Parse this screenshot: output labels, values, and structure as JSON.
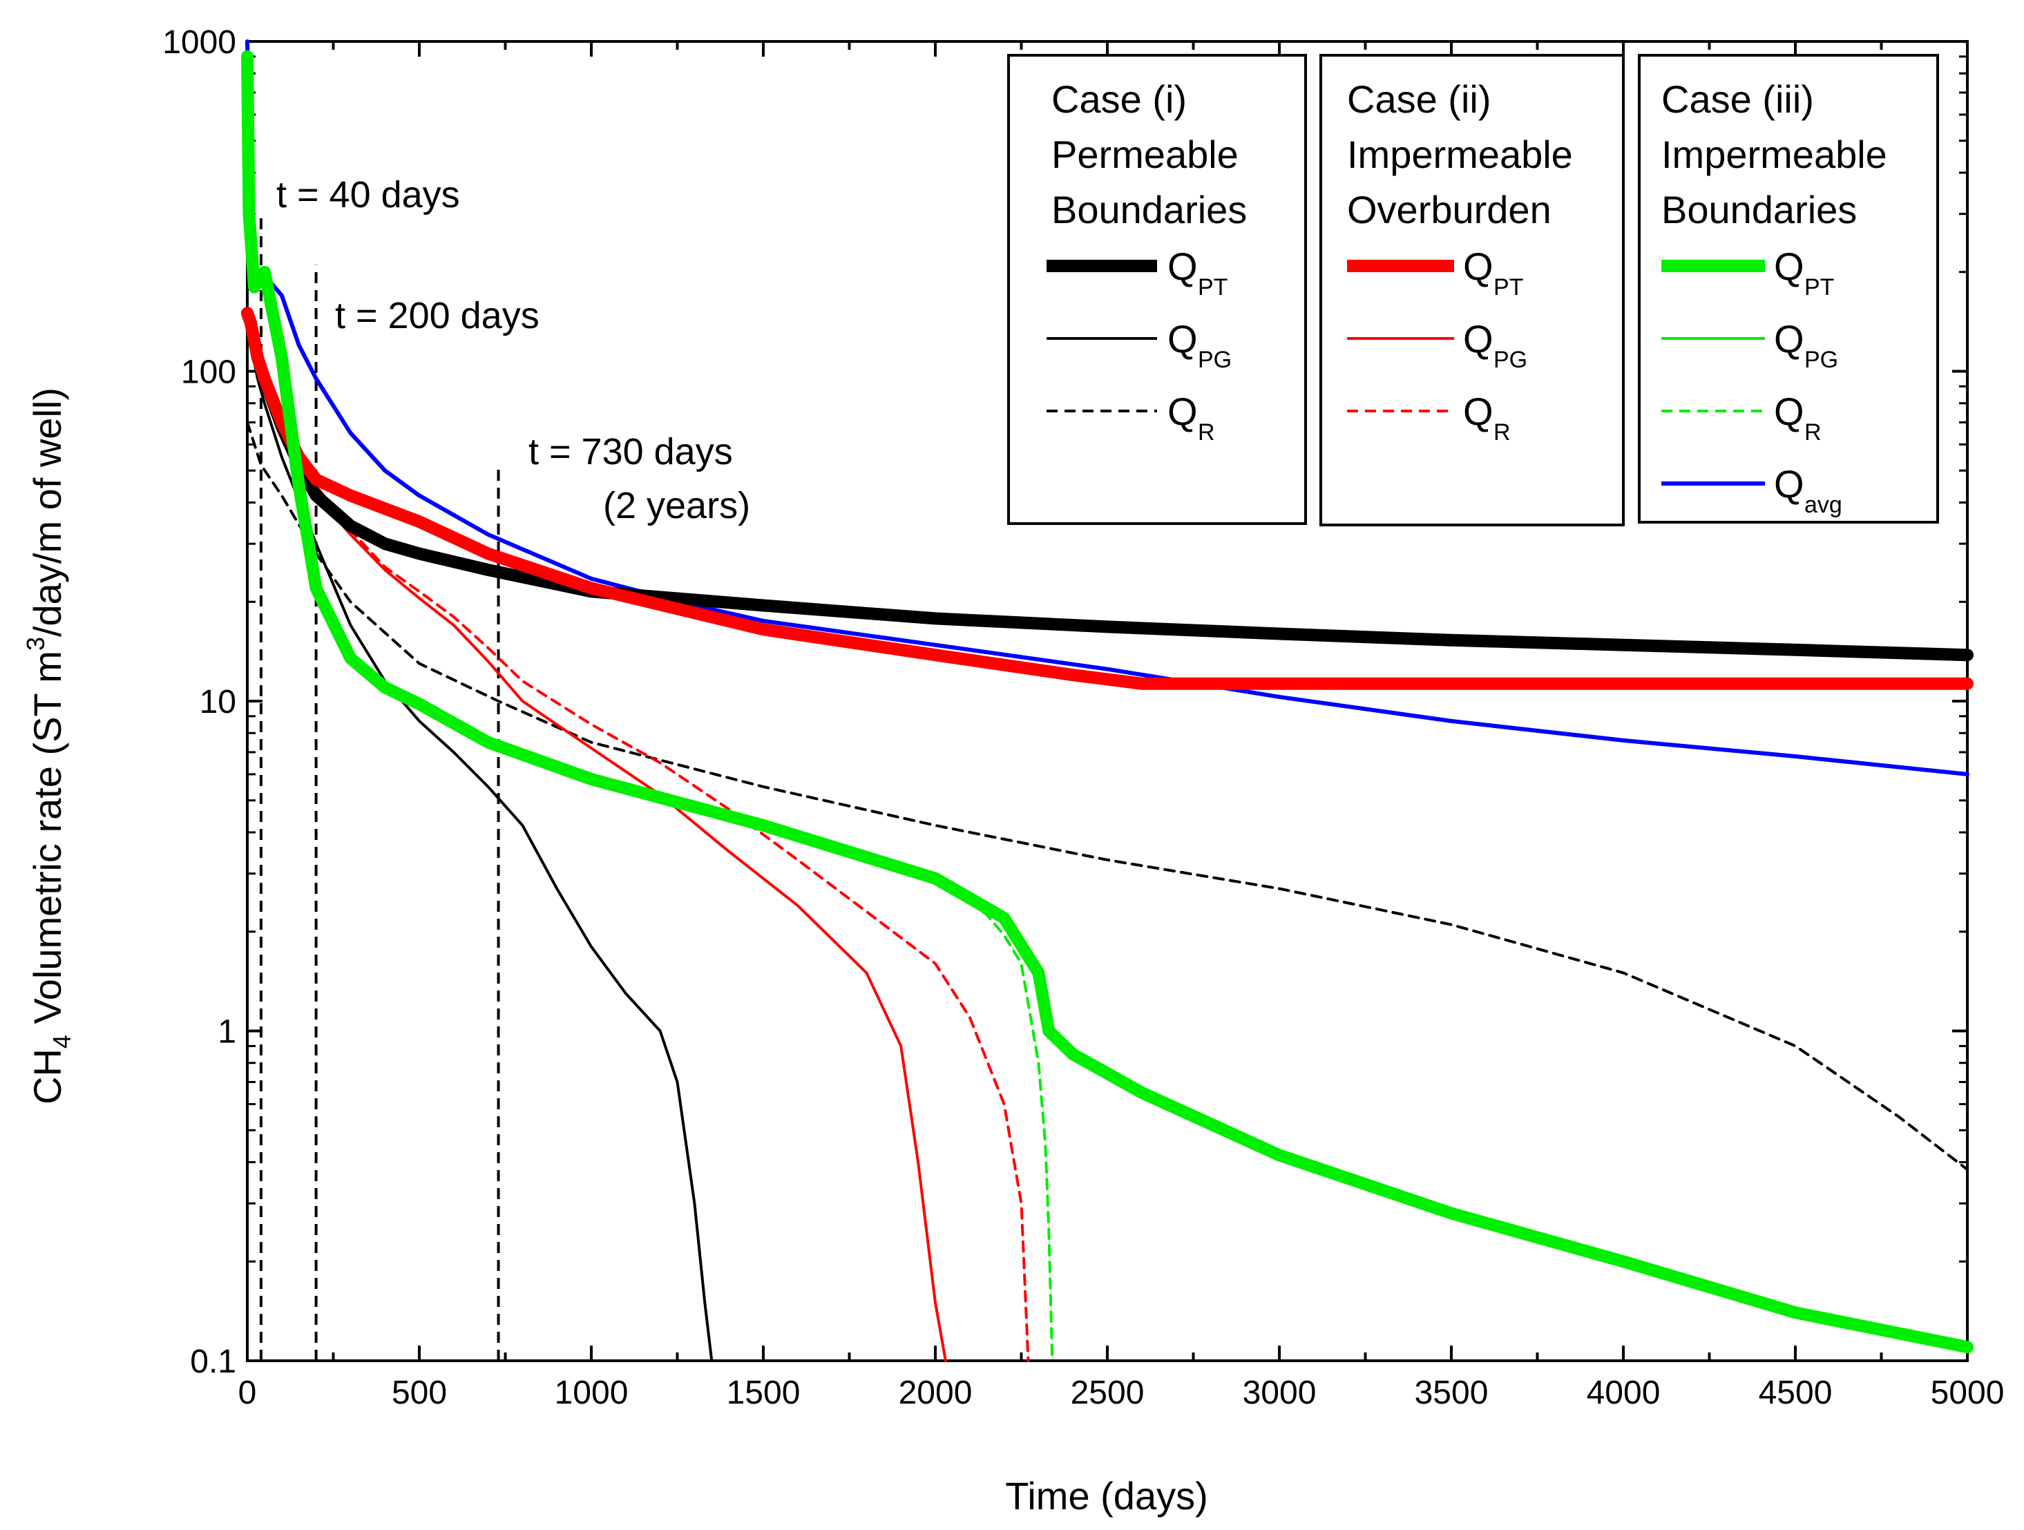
{
  "chart_data": {
    "type": "line",
    "xlabel": "Time (days)",
    "ylabel": {
      "pre": "CH",
      "sub": "4",
      "mid": " Volumetric rate (ST m",
      "sup": "3",
      "post": "/day/m of well)"
    },
    "xlim": [
      0,
      5000
    ],
    "ylim": [
      0.1,
      1000
    ],
    "yscale": "log",
    "x_ticks": [
      0,
      500,
      1000,
      1500,
      2000,
      2500,
      3000,
      3500,
      4000,
      4500,
      5000
    ],
    "x_tick_labels": [
      "0",
      "500",
      "1000",
      "1500",
      "2000",
      "2500",
      "3000",
      "3500",
      "4000",
      "4500",
      "5000"
    ],
    "y_ticks": [
      0.1,
      1,
      10,
      100,
      1000
    ],
    "y_tick_labels": [
      "0.1",
      "1",
      "10",
      "100",
      "1000"
    ],
    "annotations": [
      {
        "id": "t40",
        "x": 40,
        "y_top": 300,
        "text": "t = 40 days"
      },
      {
        "id": "t200",
        "x": 200,
        "y_top": 210,
        "text": "t = 200 days"
      },
      {
        "id": "t730",
        "x": 730,
        "y_top": 52,
        "text_lines": [
          "t = 730 days",
          "(2 years)"
        ]
      }
    ],
    "legend_groups": [
      {
        "title": [
          "Case (i)",
          "Permeable",
          "Boundaries"
        ],
        "entries": [
          {
            "symbol": "Q",
            "sub": "PT",
            "color": "#000000",
            "style": "thick"
          },
          {
            "symbol": "Q",
            "sub": "PG",
            "color": "#000000",
            "style": "thin"
          },
          {
            "symbol": "Q",
            "sub": "R",
            "color": "#000000",
            "style": "dashed"
          }
        ]
      },
      {
        "title": [
          "Case (ii)",
          "Impermeable",
          "Overburden"
        ],
        "entries": [
          {
            "symbol": "Q",
            "sub": "PT",
            "color": "#ff0000",
            "style": "thick"
          },
          {
            "symbol": "Q",
            "sub": "PG",
            "color": "#ff0000",
            "style": "thin"
          },
          {
            "symbol": "Q",
            "sub": "R",
            "color": "#ff0000",
            "style": "dashed"
          }
        ]
      },
      {
        "title": [
          "Case (iii)",
          "Impermeable",
          "Boundaries"
        ],
        "entries": [
          {
            "symbol": "Q",
            "sub": "PT",
            "color": "#00ee00",
            "style": "thick"
          },
          {
            "symbol": "Q",
            "sub": "PG",
            "color": "#00ee00",
            "style": "thin"
          },
          {
            "symbol": "Q",
            "sub": "R",
            "color": "#00ee00",
            "style": "dashed"
          },
          {
            "symbol": "Q",
            "sub": "avg",
            "color": "#0000ff",
            "style": "medium"
          }
        ]
      }
    ],
    "series": [
      {
        "name": "Case (i) Q_PT",
        "color": "#000000",
        "style": "thick",
        "x": [
          0,
          10,
          30,
          50,
          100,
          150,
          200,
          300,
          400,
          500,
          700,
          1000,
          1500,
          2000,
          2500,
          3000,
          3500,
          4000,
          4500,
          5000
        ],
        "y": [
          150,
          140,
          110,
          95,
          68,
          52,
          42,
          34,
          30,
          28,
          25,
          21.5,
          19.5,
          17.8,
          16.8,
          16,
          15.3,
          14.8,
          14.3,
          13.8
        ]
      },
      {
        "name": "Case (i) Q_PG",
        "color": "#000000",
        "style": "thin",
        "x": [
          0,
          10,
          30,
          50,
          100,
          200,
          300,
          400,
          500,
          600,
          700,
          800,
          900,
          1000,
          1100,
          1200,
          1250,
          1300,
          1330,
          1350
        ],
        "y": [
          130,
          120,
          95,
          80,
          55,
          30,
          17,
          11.5,
          8.7,
          7,
          5.5,
          4.2,
          2.7,
          1.8,
          1.3,
          1.0,
          0.7,
          0.3,
          0.15,
          0.1
        ]
      },
      {
        "name": "Case (i) Q_R",
        "color": "#000000",
        "style": "dashed",
        "x": [
          0,
          10,
          40,
          100,
          200,
          300,
          500,
          730,
          1000,
          1500,
          2000,
          2500,
          3000,
          3500,
          4000,
          4500,
          4800,
          5000
        ],
        "y": [
          70,
          65,
          52,
          42,
          28,
          20,
          13,
          10,
          7.5,
          5.5,
          4.2,
          3.3,
          2.7,
          2.1,
          1.5,
          0.9,
          0.55,
          0.38
        ]
      },
      {
        "name": "Case (ii) Q_PT",
        "color": "#ff0000",
        "style": "thick",
        "x": [
          0,
          10,
          30,
          50,
          100,
          150,
          200,
          300,
          500,
          700,
          1000,
          1500,
          2000,
          2400,
          2600,
          3000,
          4000,
          5000
        ],
        "y": [
          150,
          140,
          110,
          95,
          70,
          55,
          47,
          42,
          35,
          28,
          22,
          16.5,
          13.8,
          12,
          11.3,
          11.3,
          11.3,
          11.3
        ]
      },
      {
        "name": "Case (ii) Q_PG",
        "color": "#ff0000",
        "style": "thin",
        "x": [
          0,
          10,
          50,
          100,
          200,
          300,
          400,
          500,
          600,
          700,
          800,
          1000,
          1200,
          1400,
          1600,
          1800,
          1900,
          1950,
          2000,
          2030
        ],
        "y": [
          140,
          130,
          100,
          72,
          42,
          32,
          25,
          20.5,
          17,
          13.2,
          10,
          7.2,
          5.2,
          3.5,
          2.4,
          1.5,
          0.9,
          0.4,
          0.15,
          0.1
        ]
      },
      {
        "name": "Case (ii) Q_R",
        "color": "#ff0000",
        "style": "dashed",
        "x": [
          0,
          10,
          50,
          100,
          200,
          300,
          400,
          500,
          600,
          700,
          800,
          1000,
          1200,
          1400,
          1600,
          1800,
          2000,
          2100,
          2200,
          2250,
          2270
        ],
        "y": [
          140,
          130,
          95,
          72,
          45,
          33,
          25.5,
          21.5,
          18,
          14.5,
          11.5,
          8.5,
          6.5,
          4.7,
          3.3,
          2.3,
          1.6,
          1.1,
          0.6,
          0.3,
          0.1
        ]
      },
      {
        "name": "Case (iii) Q_PT",
        "color": "#00ee00",
        "style": "thick",
        "x": [
          0,
          5,
          20,
          50,
          100,
          150,
          200,
          300,
          400,
          500,
          700,
          1000,
          1500,
          2000,
          2200,
          2300,
          2330,
          2400,
          2600,
          3000,
          3500,
          4000,
          4500,
          5000
        ],
        "y": [
          900,
          300,
          180,
          200,
          110,
          45,
          22,
          13.5,
          11,
          9.8,
          7.5,
          5.8,
          4.2,
          2.9,
          2.2,
          1.5,
          1.0,
          0.85,
          0.65,
          0.42,
          0.28,
          0.2,
          0.14,
          0.11
        ]
      },
      {
        "name": "Case (iii) Q_R",
        "color": "#00ee00",
        "style": "dashed",
        "x": [
          2100,
          2150,
          2200,
          2250,
          2300,
          2320,
          2330,
          2340
        ],
        "y": [
          2.45,
          2.25,
          1.95,
          1.6,
          0.8,
          0.45,
          0.25,
          0.1
        ]
      },
      {
        "name": "Q_avg",
        "color": "#0000ff",
        "style": "medium",
        "x": [
          0,
          5,
          15,
          30,
          50,
          100,
          150,
          200,
          300,
          400,
          500,
          700,
          1000,
          1300,
          1500,
          2000,
          2500,
          3000,
          3500,
          4000,
          4500,
          5000
        ],
        "y": [
          1000,
          500,
          280,
          180,
          195,
          170,
          120,
          95,
          65,
          50,
          42,
          32,
          23.5,
          19.5,
          17.5,
          14.8,
          12.5,
          10.3,
          8.7,
          7.6,
          6.8,
          6.0
        ]
      }
    ]
  }
}
